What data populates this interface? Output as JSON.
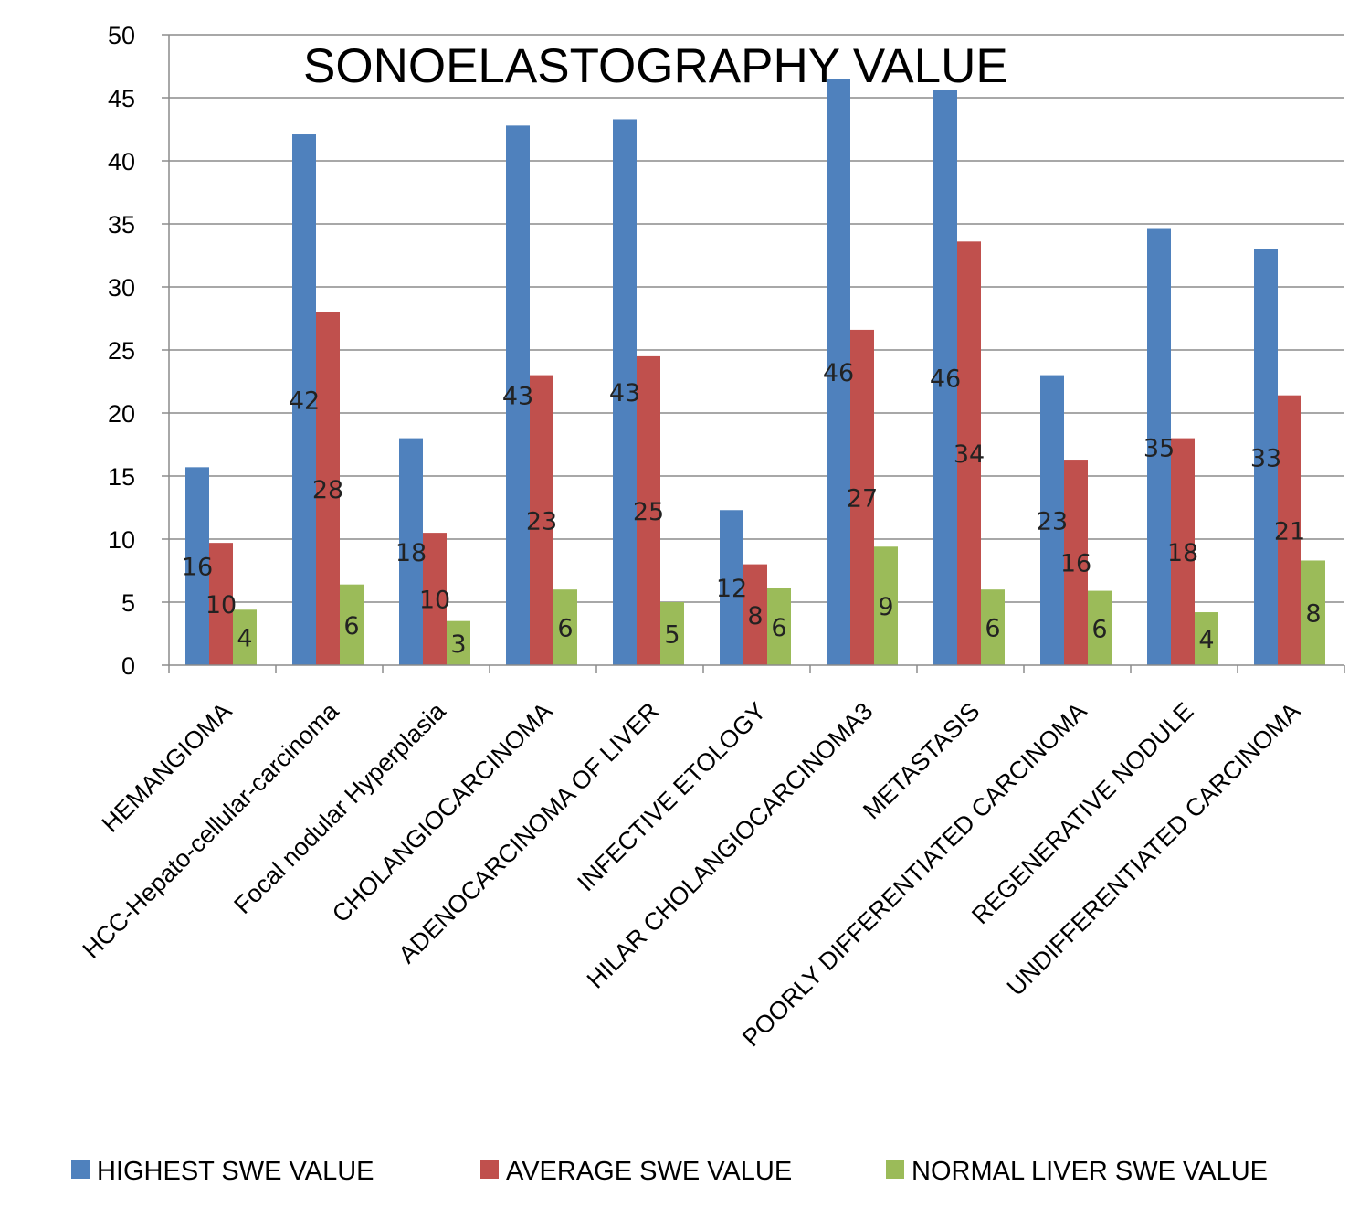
{
  "chart_data": {
    "type": "bar",
    "title": "SONOELASTOGRAPHY VALUE",
    "xlabel": "",
    "ylabel": "",
    "ylim": [
      0,
      50
    ],
    "yticks": [
      0,
      5,
      10,
      15,
      20,
      25,
      30,
      35,
      40,
      45,
      50
    ],
    "grid": true,
    "legend_position": "bottom",
    "categories": [
      "HEMANGIOMA",
      "HCC-Hepato-cellular-carcinoma",
      "Focal nodular Hyperplasia",
      "CHOLANGIOCARCINOMA",
      "ADENOCARCINOMA OF LIVER",
      "INFECTIVE ETOLOGY",
      "HILAR CHOLANGIOCARCINOMA3",
      "METASTASIS",
      "POORLY DIFFERENTIATED CARCINOMA",
      "REGENERATIVE NODULE",
      "UNDIFFERENTIATED CARCINOMA"
    ],
    "series": [
      {
        "name": "HIGHEST SWE VALUE",
        "color": "#4F81BD",
        "values": [
          15.7,
          42.1,
          18.0,
          42.8,
          43.3,
          12.3,
          46.5,
          45.6,
          23.0,
          34.6,
          33.0
        ],
        "labels": [
          "16",
          "42",
          "18",
          "43",
          "43",
          "12",
          "46",
          "46",
          "23",
          "35",
          "33"
        ]
      },
      {
        "name": "AVERAGE SWE VALUE",
        "color": "#C0504D",
        "values": [
          9.7,
          28.0,
          10.5,
          23.0,
          24.5,
          8.0,
          26.6,
          33.6,
          16.3,
          18.0,
          21.4
        ],
        "labels": [
          "10",
          "28",
          "10",
          "23",
          "25",
          "8",
          "27",
          "34",
          "16",
          "18",
          "21"
        ]
      },
      {
        "name": "NORMAL LIVER SWE VALUE",
        "color": "#9BBB59",
        "values": [
          4.4,
          6.4,
          3.5,
          6.0,
          5.0,
          6.1,
          9.4,
          6.0,
          5.9,
          4.2,
          8.3
        ],
        "labels": [
          "4",
          "6",
          "3",
          "6",
          "5",
          "6",
          "9",
          "6",
          "6",
          "4",
          "8"
        ]
      }
    ]
  }
}
